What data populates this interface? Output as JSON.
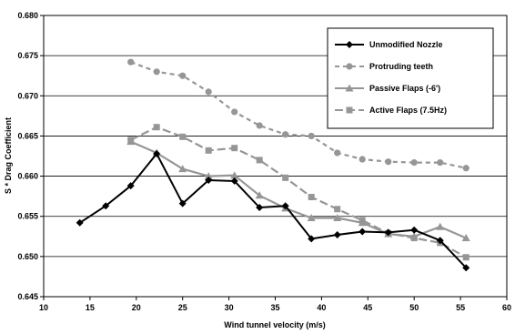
{
  "chart_data": {
    "type": "line",
    "xlabel": "Wind tunnel velocity (m/s)",
    "ylabel": "S * Drag Coefficient",
    "xlim": [
      10,
      60
    ],
    "ylim": [
      0.645,
      0.68
    ],
    "xticks": [
      10,
      15,
      20,
      25,
      30,
      35,
      40,
      45,
      50,
      55,
      60
    ],
    "yticks": [
      0.645,
      0.65,
      0.655,
      0.66,
      0.665,
      0.67,
      0.675,
      0.68
    ],
    "grid": "horizontal",
    "legend_position": "top-right",
    "series": [
      {
        "name": "Unmodified Nozzle",
        "color": "#000000",
        "dash": "solid",
        "marker": "diamond",
        "x": [
          13.9,
          16.7,
          19.4,
          22.2,
          25.0,
          27.8,
          30.6,
          33.3,
          36.1,
          38.9,
          41.7,
          44.4,
          47.2,
          50.0,
          52.8,
          55.6
        ],
        "y": [
          0.6542,
          0.6563,
          0.6588,
          0.6628,
          0.6566,
          0.6595,
          0.6594,
          0.6561,
          0.6563,
          0.6522,
          0.6527,
          0.6531,
          0.653,
          0.6533,
          0.652,
          0.6486
        ]
      },
      {
        "name": "Protruding teeth",
        "color": "#969696",
        "dash": "dashed",
        "marker": "circle",
        "x": [
          19.4,
          22.2,
          25.0,
          27.8,
          30.6,
          33.3,
          36.1,
          38.9,
          41.7,
          44.4,
          47.2,
          50.0,
          52.8,
          55.6
        ],
        "y": [
          0.6742,
          0.673,
          0.6725,
          0.6705,
          0.668,
          0.6663,
          0.6652,
          0.665,
          0.6629,
          0.6621,
          0.6618,
          0.6617,
          0.6617,
          0.661
        ]
      },
      {
        "name": "Passive Flaps (-6')",
        "color": "#969696",
        "dash": "solid",
        "marker": "triangle",
        "x": [
          19.4,
          22.2,
          25.0,
          27.8,
          30.6,
          33.3,
          36.1,
          38.9,
          41.7,
          44.4,
          47.2,
          50.0,
          52.8,
          55.6
        ],
        "y": [
          0.6643,
          0.6629,
          0.6609,
          0.66,
          0.6601,
          0.6576,
          0.656,
          0.6548,
          0.6548,
          0.6542,
          0.6528,
          0.6525,
          0.6537,
          0.6523
        ]
      },
      {
        "name": "Active Flaps (7.5Hz)",
        "color": "#969696",
        "dash": "long-dashed",
        "marker": "square",
        "x": [
          19.4,
          22.2,
          25.0,
          27.8,
          30.6,
          33.3,
          36.1,
          38.9,
          41.7,
          44.4,
          47.2,
          50.0,
          52.8,
          55.6
        ],
        "y": [
          0.6645,
          0.6661,
          0.6649,
          0.6632,
          0.6635,
          0.662,
          0.6598,
          0.6574,
          0.6559,
          0.6545,
          0.6529,
          0.6523,
          0.6517,
          0.6499
        ]
      }
    ]
  }
}
